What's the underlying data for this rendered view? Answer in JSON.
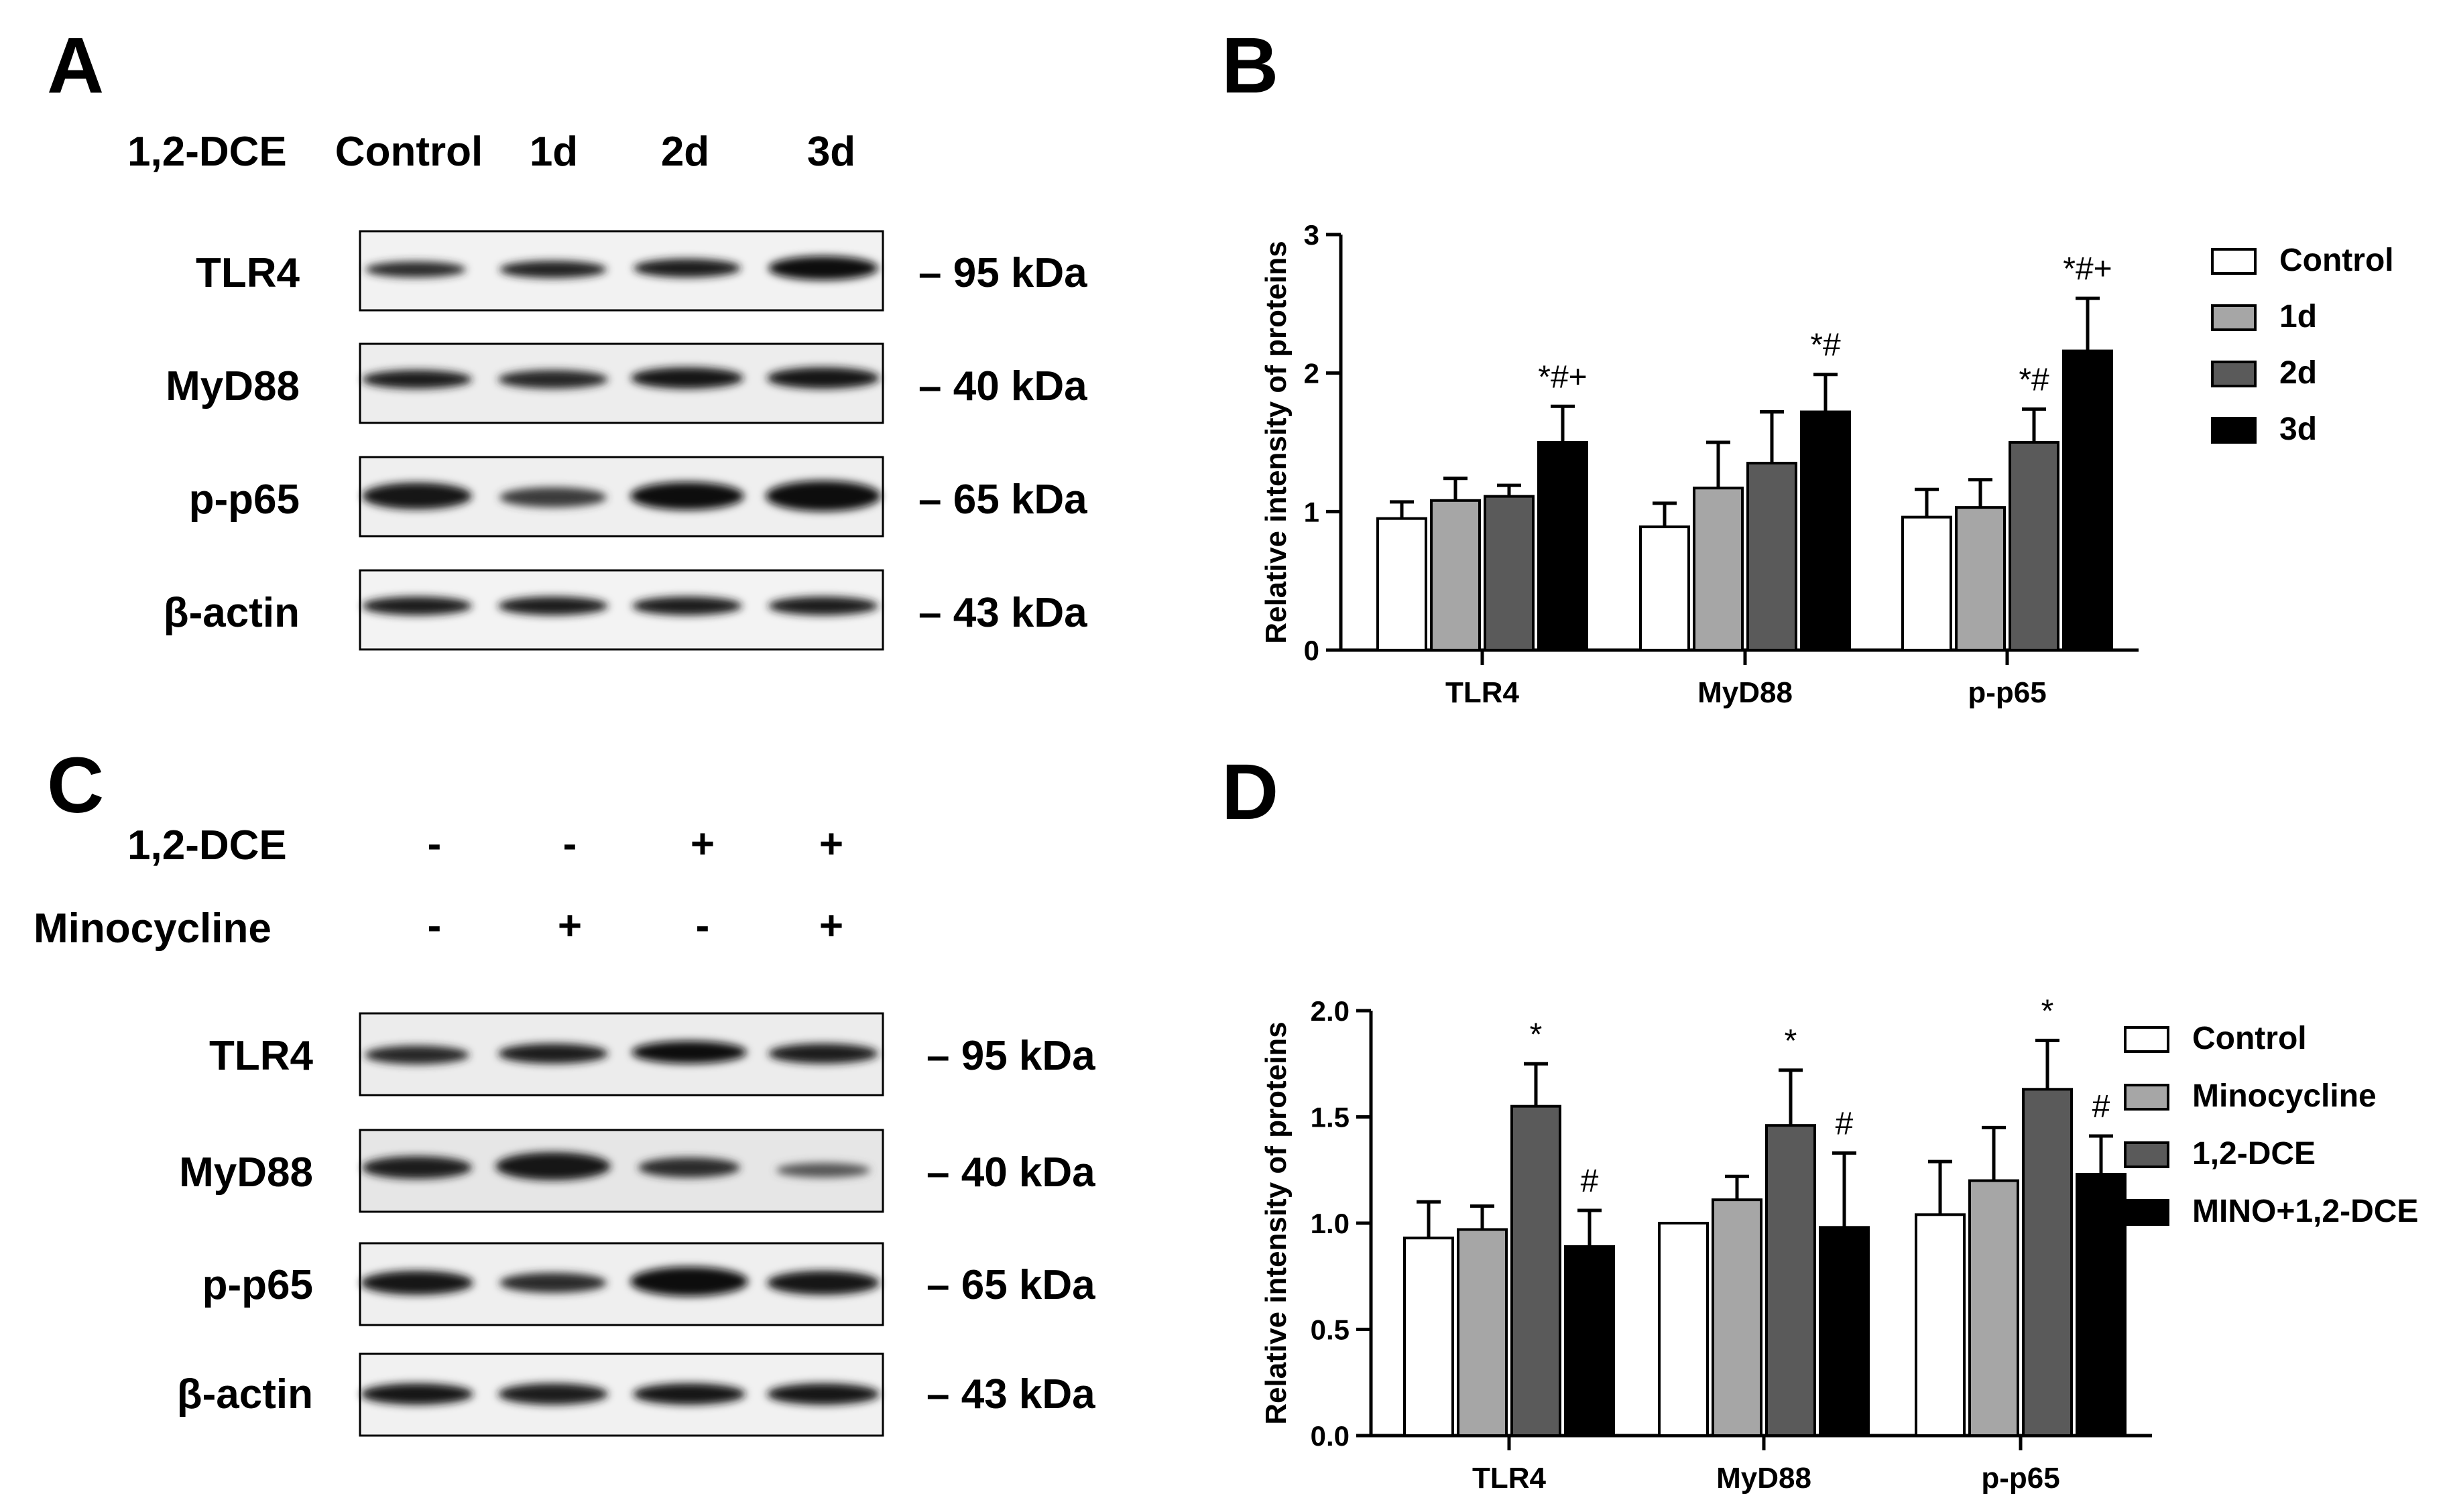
{
  "panels": {
    "A": {
      "letter": "A",
      "row_label": "1,2-DCE",
      "lane_labels": [
        "Control",
        "1d",
        "2d",
        "3d"
      ],
      "proteins": [
        "TLR4",
        "MyD88",
        "p-p65",
        "β-actin"
      ],
      "sizes": [
        "– 95 kDa",
        "– 40 kDa",
        "– 65 kDa",
        "– 43 kDa"
      ]
    },
    "B": {
      "letter": "B"
    },
    "C": {
      "letter": "C",
      "treatments": [
        {
          "label": "1,2-DCE",
          "signs": [
            "-",
            "-",
            "+",
            "+"
          ]
        },
        {
          "label": "Minocycline",
          "signs": [
            "-",
            "+",
            "-",
            "+"
          ]
        }
      ],
      "proteins": [
        "TLR4",
        "MyD88",
        "p-p65",
        "β-actin"
      ],
      "sizes": [
        "– 95 kDa",
        "– 40 kDa",
        "– 65 kDa",
        "– 43 kDa"
      ]
    },
    "D": {
      "letter": "D"
    }
  },
  "chart_data": [
    {
      "panel": "B",
      "type": "bar",
      "ylabel": "Relative intensity of proteins",
      "ylim": [
        0,
        3
      ],
      "yticks": [
        "0",
        "1",
        "2",
        "3"
      ],
      "categories": [
        "TLR4",
        "MyD88",
        "p-p65"
      ],
      "legend_position": "right",
      "series": [
        {
          "name": "Control",
          "color": "#ffffff",
          "values": [
            0.95,
            0.89,
            0.96
          ],
          "errors": [
            0.12,
            0.17,
            0.2
          ]
        },
        {
          "name": "1d",
          "color": "#a6a6a6",
          "values": [
            1.08,
            1.17,
            1.03
          ],
          "errors": [
            0.16,
            0.33,
            0.2
          ]
        },
        {
          "name": "2d",
          "color": "#5a5a5a",
          "values": [
            1.11,
            1.35,
            1.5
          ],
          "errors": [
            0.08,
            0.37,
            0.24
          ]
        },
        {
          "name": "3d",
          "color": "#000000",
          "values": [
            1.5,
            1.72,
            2.16
          ],
          "errors": [
            0.26,
            0.27,
            0.38
          ]
        }
      ],
      "annotations": [
        {
          "category": "TLR4",
          "series": "3d",
          "text": "*#+"
        },
        {
          "category": "MyD88",
          "series": "3d",
          "text": "*#"
        },
        {
          "category": "p-p65",
          "series": "2d",
          "text": "*#"
        },
        {
          "category": "p-p65",
          "series": "3d",
          "text": "*#+"
        }
      ]
    },
    {
      "panel": "D",
      "type": "bar",
      "ylabel": "Relative intensity of proteins",
      "ylim": [
        0,
        2
      ],
      "yticks": [
        "0.0",
        "0.5",
        "1.0",
        "1.5",
        "2.0"
      ],
      "categories": [
        "TLR4",
        "MyD88",
        "p-p65"
      ],
      "legend_position": "right",
      "series": [
        {
          "name": "Control",
          "color": "#ffffff",
          "values": [
            0.93,
            1.0,
            1.04
          ],
          "errors": [
            0.17,
            0.0,
            0.25
          ]
        },
        {
          "name": "Minocycline",
          "color": "#a6a6a6",
          "values": [
            0.97,
            1.11,
            1.2
          ],
          "errors": [
            0.11,
            0.11,
            0.25
          ]
        },
        {
          "name": "1,2-DCE",
          "color": "#5a5a5a",
          "values": [
            1.55,
            1.46,
            1.63
          ],
          "errors": [
            0.2,
            0.26,
            0.23
          ]
        },
        {
          "name": "MINO+1,2-DCE",
          "color": "#000000",
          "values": [
            0.89,
            0.98,
            1.23
          ],
          "errors": [
            0.17,
            0.35,
            0.18
          ]
        }
      ],
      "annotations": [
        {
          "category": "TLR4",
          "series": "1,2-DCE",
          "text": "*"
        },
        {
          "category": "TLR4",
          "series": "MINO+1,2-DCE",
          "text": "#"
        },
        {
          "category": "MyD88",
          "series": "1,2-DCE",
          "text": "*"
        },
        {
          "category": "MyD88",
          "series": "MINO+1,2-DCE",
          "text": "#"
        },
        {
          "category": "p-p65",
          "series": "1,2-DCE",
          "text": "*"
        },
        {
          "category": "p-p65",
          "series": "MINO+1,2-DCE",
          "text": "#"
        }
      ]
    }
  ]
}
